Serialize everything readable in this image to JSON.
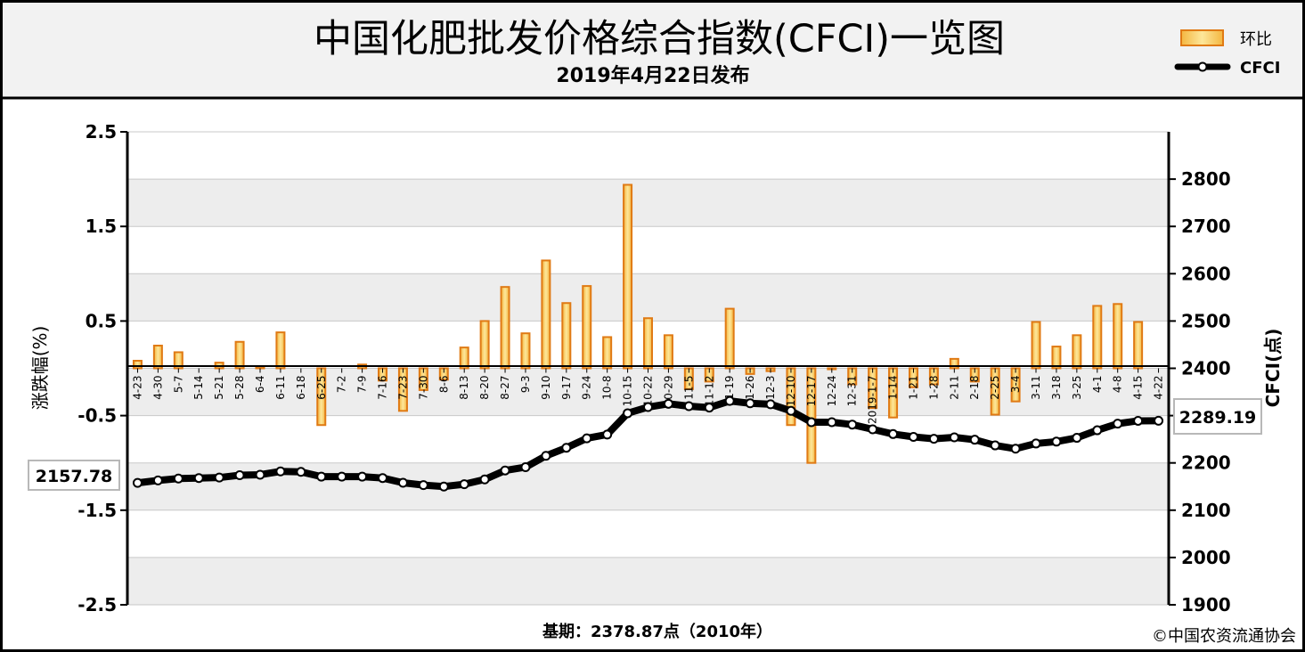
{
  "header": {
    "title": "中国化肥批发价格综合指数(CFCI)一览图",
    "subtitle": "2019年4月22日发布"
  },
  "legend": {
    "bar_label": "环比",
    "line_label": "CFCI"
  },
  "axes": {
    "left_label": "涨跌幅(%)",
    "right_label": "CFCI(点)"
  },
  "footer": {
    "base_period": "基期：2378.87点（2010年）",
    "copyright": "©中国农资流通协会"
  },
  "callouts": {
    "start": "2157.78",
    "end": "2289.19"
  },
  "colors": {
    "bar_fill": "#f6c94a",
    "bar_stroke": "#e07a14",
    "line": "#000000",
    "grid_band": "#ededed"
  },
  "chart_data": {
    "type": "bar+line",
    "categories": [
      "4-23",
      "4-30",
      "5-7",
      "5-14",
      "5-21",
      "5-28",
      "6-4",
      "6-11",
      "6-18",
      "6-25",
      "7-2",
      "7-9",
      "7-16",
      "7-23",
      "7-30",
      "8-6",
      "8-13",
      "8-20",
      "8-27",
      "9-3",
      "9-10",
      "9-17",
      "9-24",
      "10-8",
      "10-15",
      "10-22",
      "10-29",
      "11-5",
      "11-12",
      "11-19",
      "11-26",
      "12-3",
      "12-10",
      "12-17",
      "12-24",
      "12-31",
      "2019-1-7",
      "1-14",
      "1-21",
      "1-28",
      "2-11",
      "2-18",
      "2-25",
      "3-4",
      "3-11",
      "3-18",
      "3-25",
      "4-1",
      "4-8",
      "4-15",
      "4-22"
    ],
    "series": [
      {
        "name": "环比",
        "axis": "left",
        "values": [
          0.08,
          0.24,
          0.17,
          0.0,
          0.06,
          0.28,
          0.02,
          0.38,
          0.0,
          -0.6,
          0.0,
          0.04,
          -0.13,
          -0.45,
          -0.23,
          -0.12,
          0.22,
          0.5,
          0.86,
          0.37,
          1.14,
          0.69,
          0.87,
          0.33,
          1.94,
          0.53,
          0.35,
          -0.22,
          -0.14,
          0.63,
          -0.06,
          -0.03,
          -0.6,
          -1.0,
          -0.01,
          -0.17,
          -0.42,
          -0.52,
          -0.2,
          -0.17,
          0.1,
          -0.14,
          -0.49,
          -0.35,
          0.49,
          0.23,
          0.35,
          0.66,
          0.68,
          0.49,
          0.0
        ]
      },
      {
        "name": "CFCI",
        "axis": "right",
        "values": [
          2157.78,
          2163,
          2167,
          2168,
          2169,
          2174,
          2175,
          2182,
          2181,
          2171,
          2171,
          2171,
          2168,
          2158,
          2153,
          2150,
          2155,
          2165,
          2184,
          2191,
          2215,
          2232,
          2252,
          2260,
          2305,
          2318,
          2325,
          2320,
          2317,
          2331,
          2326,
          2324,
          2310,
          2286,
          2286,
          2281,
          2271,
          2261,
          2255,
          2251,
          2254,
          2249,
          2237,
          2230,
          2241,
          2245,
          2253,
          2269,
          2283,
          2289,
          2289.19
        ]
      }
    ],
    "ylim_left": [
      -2.5,
      2.5
    ],
    "yticks_left": [
      "2.5",
      "1.5",
      "0.5",
      "-0.5",
      "-1.5",
      "-2.5"
    ],
    "ylim_right": [
      1900,
      2900
    ],
    "yticks_right": [
      "2800",
      "2700",
      "2600",
      "2500",
      "2400",
      "2300",
      "2200",
      "2100",
      "2000",
      "1900"
    ],
    "legend_position": "top-right",
    "grid": "horizontal bands"
  }
}
